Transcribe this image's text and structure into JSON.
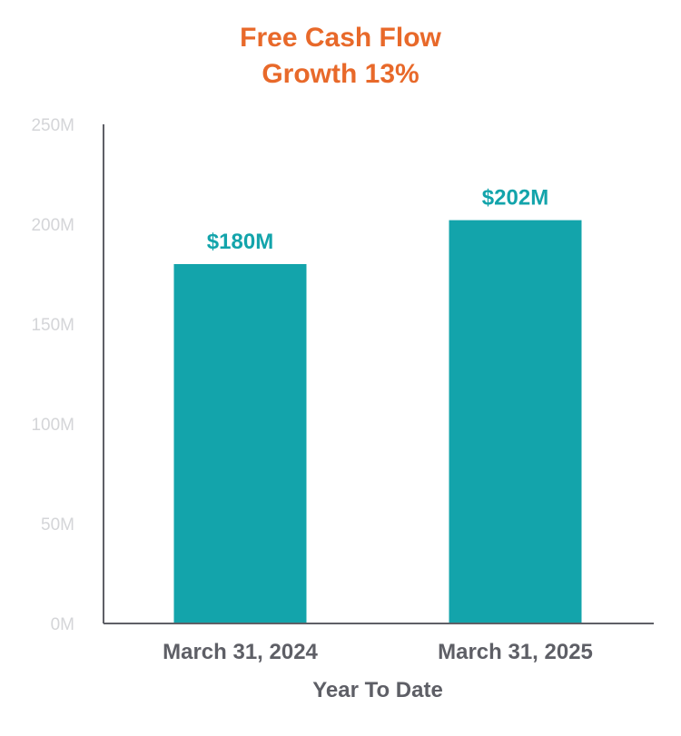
{
  "chart_data": {
    "type": "bar",
    "title_lines": [
      "Free Cash Flow",
      "Growth 13%"
    ],
    "categories": [
      "March 31, 2024",
      "March 31, 2025"
    ],
    "values": [
      180,
      202
    ],
    "data_labels": [
      "$180M",
      "$202M"
    ],
    "xlabel": "Year To Date",
    "ylabel": "",
    "ylim": [
      0,
      250
    ],
    "yticks": [
      0,
      50,
      100,
      150,
      200,
      250
    ],
    "ytick_labels": [
      "0M",
      "50M",
      "100M",
      "150M",
      "200M",
      "250M"
    ],
    "grid": false,
    "legend": "none"
  },
  "colors": {
    "title": "#E8692A",
    "bar": "#13A4AB",
    "data_label": "#13A4AB",
    "tick_label": "#D4D5D8",
    "category_label": "#5E5F66",
    "axis_title": "#5E5F66",
    "axis_line": "#5E5F66"
  }
}
